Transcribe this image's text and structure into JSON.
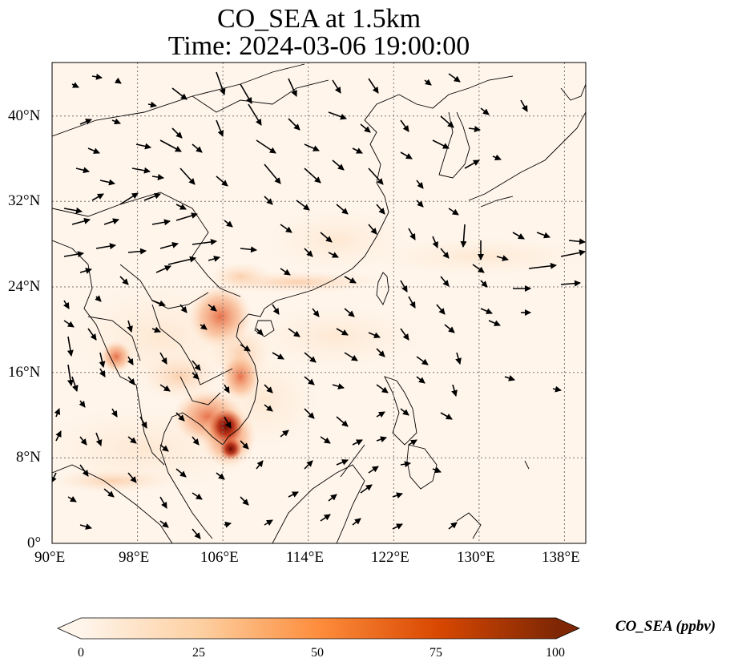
{
  "title": {
    "line1": "CO_SEA at 1.5km",
    "line2": "Time: 2024-03-06 19:00:00"
  },
  "map": {
    "lon_range": [
      90,
      140
    ],
    "lat_range": [
      0,
      45
    ],
    "lon_ticks": [
      "90°E",
      "98°E",
      "106°E",
      "114°E",
      "122°E",
      "130°E",
      "138°E"
    ],
    "lat_ticks": [
      "0°",
      "8°N",
      "16°N",
      "24°N",
      "32°N",
      "40°N"
    ],
    "gridlines": "dotted"
  },
  "colorbar": {
    "label": "CO_SEA (ppbv)",
    "ticks": [
      "0",
      "25",
      "50",
      "75",
      "100"
    ],
    "range": [
      0,
      100
    ],
    "extend": "both",
    "colors": [
      "#fff5eb",
      "#fdd0a2",
      "#fd8d3c",
      "#d94801",
      "#7f2704"
    ]
  }
}
